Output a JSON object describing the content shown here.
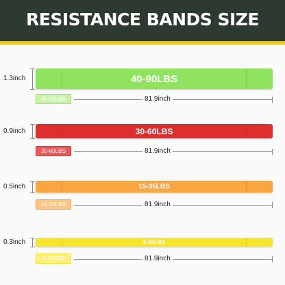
{
  "header": {
    "title": "RESISTANCE BANDS SIZE"
  },
  "bands": [
    {
      "load": "40-90LBS",
      "width": "1.3inch",
      "length": "81.9inch",
      "color": "#8fe35e",
      "tag_color": "#c9f2ad"
    },
    {
      "load": "30-60LBS",
      "width": "0.9inch",
      "length": "81.9inch",
      "color": "#de2f2f",
      "tag_color": "#e95a5a"
    },
    {
      "load": "15-35LBS",
      "width": "0.5inch",
      "length": "81.9inch",
      "color": "#f7a641",
      "tag_color": "#fbc584"
    },
    {
      "load": "5-15LBS",
      "width": "0.3inch",
      "length": "81.9inch",
      "color": "#f6e52b",
      "tag_color": "#fbf083"
    }
  ]
}
